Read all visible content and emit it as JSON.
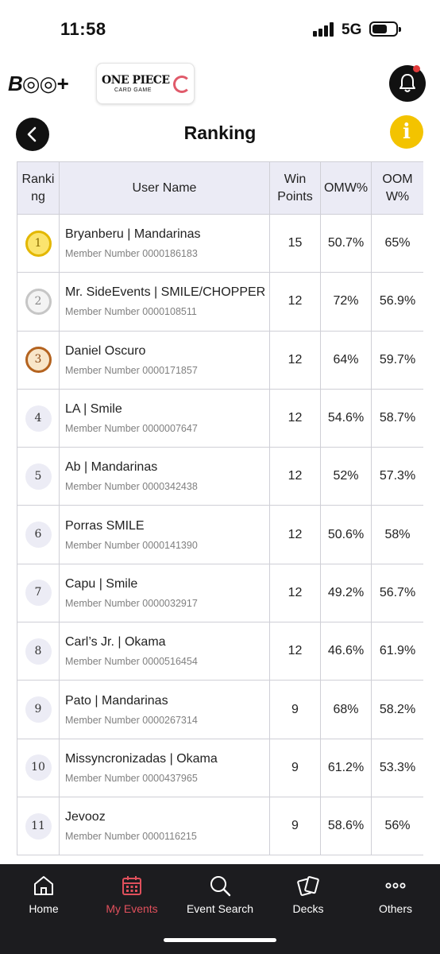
{
  "status_bar": {
    "time": "11:58",
    "network": "5G"
  },
  "header": {
    "brand_logo": "B◎◎+",
    "game_logo_title": "ONE PIECE",
    "game_logo_subtitle": "CARD GAME",
    "bell_icon": "bell-icon"
  },
  "page": {
    "title": "Ranking",
    "info_label": "i"
  },
  "table": {
    "headers": {
      "ranking": "Ranking",
      "user_name": "User Name",
      "win_points": "Win Points",
      "omw": "OMW%",
      "oomw": "OOMW%"
    },
    "rows": [
      {
        "rank": "1",
        "name": "Bryanberu | Mandarinas",
        "member": "Member Number 0000186183",
        "win_points": "15",
        "omw": "50.7%",
        "oomw": "65%"
      },
      {
        "rank": "2",
        "name": "Mr. SideEvents | SMILE/CHOPPER",
        "member": "Member Number 0000108511",
        "win_points": "12",
        "omw": "72%",
        "oomw": "56.9%"
      },
      {
        "rank": "3",
        "name": "Daniel Oscuro",
        "member": "Member Number 0000171857",
        "win_points": "12",
        "omw": "64%",
        "oomw": "59.7%"
      },
      {
        "rank": "4",
        "name": "LA | Smile",
        "member": "Member Number 0000007647",
        "win_points": "12",
        "omw": "54.6%",
        "oomw": "58.7%"
      },
      {
        "rank": "5",
        "name": "Ab | Mandarinas",
        "member": "Member Number 0000342438",
        "win_points": "12",
        "omw": "52%",
        "oomw": "57.3%"
      },
      {
        "rank": "6",
        "name": "Porras SMILE",
        "member": "Member Number 0000141390",
        "win_points": "12",
        "omw": "50.6%",
        "oomw": "58%"
      },
      {
        "rank": "7",
        "name": "Capu | Smile",
        "member": "Member Number 0000032917",
        "win_points": "12",
        "omw": "49.2%",
        "oomw": "56.7%"
      },
      {
        "rank": "8",
        "name": "Carl’s Jr. | Okama",
        "member": "Member Number 0000516454",
        "win_points": "12",
        "omw": "46.6%",
        "oomw": "61.9%"
      },
      {
        "rank": "9",
        "name": "Pato | Mandarinas",
        "member": "Member Number 0000267314",
        "win_points": "9",
        "omw": "68%",
        "oomw": "58.2%"
      },
      {
        "rank": "10",
        "name": "Missyncronizadas | Okama",
        "member": "Member Number 0000437965",
        "win_points": "9",
        "omw": "61.2%",
        "oomw": "53.3%"
      },
      {
        "rank": "11",
        "name": "Jevooz",
        "member": "Member Number 0000116215",
        "win_points": "9",
        "omw": "58.6%",
        "oomw": "56%"
      }
    ]
  },
  "bottom_nav": {
    "items": [
      {
        "label": "Home",
        "icon": "home-icon"
      },
      {
        "label": "My Events",
        "icon": "calendar-icon",
        "active": true
      },
      {
        "label": "Event Search",
        "icon": "search-icon"
      },
      {
        "label": "Decks",
        "icon": "cards-icon"
      },
      {
        "label": "Others",
        "icon": "more-icon"
      }
    ]
  },
  "colors": {
    "accent": "#e0505c",
    "info": "#f3c300",
    "nav_bg": "#1c1c1f",
    "header_bg": "#ebebf5"
  }
}
